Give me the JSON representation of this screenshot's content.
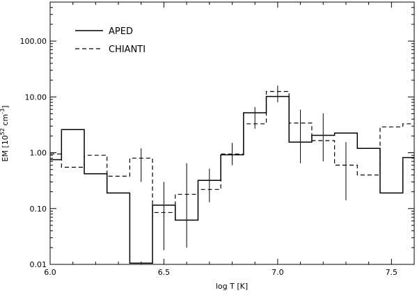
{
  "chart_data": {
    "type": "line",
    "step": true,
    "xlabel": "log T [K]",
    "ylabel_prefix": "EM [10",
    "ylabel_exp1": "52",
    "ylabel_mid": " cm",
    "ylabel_exp2": "-3",
    "ylabel_suffix": "]",
    "xlim": [
      6.0,
      7.6
    ],
    "ylim": [
      0.01,
      500
    ],
    "yscale": "log",
    "x_ticks": [
      6.0,
      6.5,
      7.0,
      7.5
    ],
    "x_tick_labels": [
      "6.0",
      "6.5",
      "7.0",
      "7.5"
    ],
    "y_ticks": [
      0.01,
      0.1,
      1,
      10,
      100
    ],
    "y_tick_labels": [
      "0.01",
      "0.10",
      "1.00",
      "10.00",
      "100.00"
    ],
    "legend": {
      "position": "top-left"
    },
    "series": [
      {
        "name": "APED",
        "style": "solid",
        "edges": [
          6.0,
          6.05,
          6.15,
          6.25,
          6.35,
          6.45,
          6.55,
          6.65,
          6.75,
          6.85,
          6.95,
          7.05,
          7.15,
          7.25,
          7.35,
          7.45,
          7.55,
          7.6
        ],
        "values": [
          0.75,
          2.6,
          0.42,
          0.19,
          0.0105,
          0.115,
          0.062,
          0.32,
          0.92,
          5.2,
          10.2,
          1.55,
          2.05,
          2.25,
          1.2,
          0.19,
          0.82
        ]
      },
      {
        "name": "CHIANTI",
        "style": "dashed",
        "edges": [
          6.0,
          6.05,
          6.15,
          6.25,
          6.35,
          6.45,
          6.55,
          6.65,
          6.75,
          6.85,
          6.95,
          7.05,
          7.15,
          7.25,
          7.35,
          7.45,
          7.55,
          7.6
        ],
        "values": [
          0.95,
          0.55,
          0.9,
          0.38,
          0.8,
          0.085,
          0.18,
          0.22,
          0.95,
          3.3,
          12.5,
          3.4,
          1.65,
          0.6,
          0.4,
          2.9,
          3.3
        ]
      }
    ],
    "error_bars": [
      {
        "x": 6.5,
        "low": 0.018,
        "high": 0.3
      },
      {
        "x": 6.6,
        "low": 0.02,
        "high": 0.65
      },
      {
        "x": 6.7,
        "low": 0.13,
        "high": 0.52
      },
      {
        "x": 6.8,
        "low": 0.6,
        "high": 1.5
      },
      {
        "x": 6.9,
        "low": 2.7,
        "high": 6.6
      },
      {
        "x": 7.0,
        "low": 8.0,
        "high": 16.0
      },
      {
        "x": 7.1,
        "low": 0.65,
        "high": 5.9
      },
      {
        "x": 7.2,
        "low": 0.7,
        "high": 5.1
      },
      {
        "x": 7.3,
        "low": 0.14,
        "high": 1.55
      },
      {
        "x": 6.4,
        "low": 0.3,
        "high": 1.2
      }
    ]
  }
}
